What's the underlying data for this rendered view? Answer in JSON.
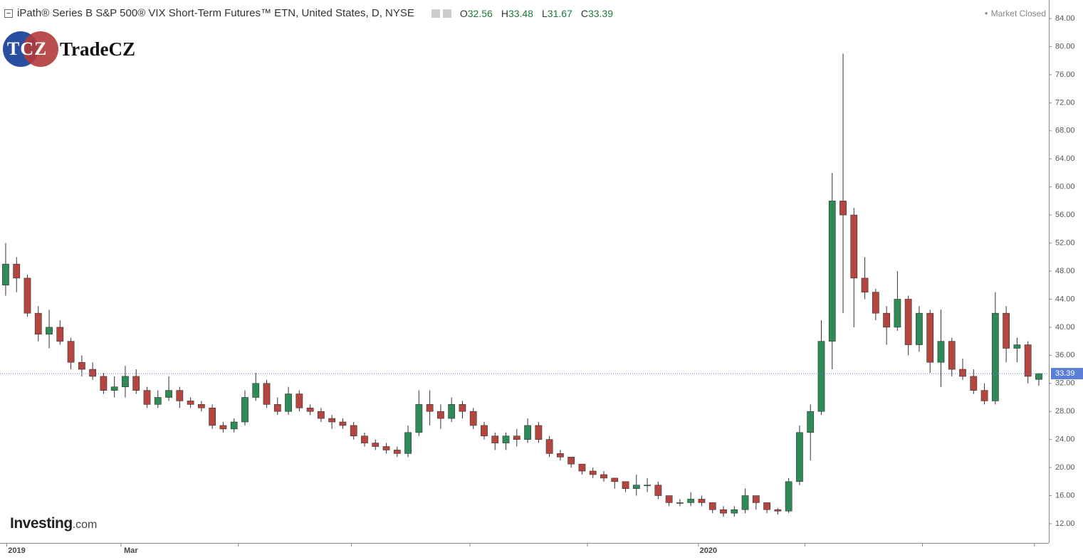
{
  "header": {
    "title": "iPath® Series B S&P 500® VIX Short-Term Futures™ ETN, United States, D, NYSE",
    "ohlc_labels": [
      "O",
      "H",
      "L",
      "C"
    ],
    "status": "Market Closed"
  },
  "logo": {
    "mark": "TCZ",
    "name": "TradeCZ"
  },
  "watermark": {
    "brand": "Investing",
    "suffix": ".com"
  },
  "chart_data": {
    "type": "candlestick",
    "open": [
      46,
      49,
      47,
      42,
      39,
      40,
      38,
      35,
      34,
      33,
      31,
      31.5,
      33,
      31,
      29,
      30,
      31,
      29.5,
      29,
      28.5,
      26,
      25.5,
      26.5,
      30,
      32,
      29,
      28,
      30.5,
      28.5,
      28,
      27,
      26.5,
      26,
      24.5,
      23.5,
      23,
      22.5,
      22,
      25,
      29,
      28,
      27,
      29,
      28,
      26,
      24.5,
      23.5,
      24.5,
      24,
      26,
      24,
      22,
      21.5,
      20.5,
      19.5,
      19,
      18.5,
      18,
      17,
      17.5,
      17.5,
      16,
      15,
      15,
      15.5,
      15,
      14,
      13.5,
      14,
      16,
      15,
      14,
      13.8,
      18,
      25,
      28,
      38,
      58,
      56,
      47,
      45,
      42,
      40,
      44,
      37.5,
      42,
      35,
      38,
      34,
      33,
      31,
      29.5,
      42,
      37,
      37.5,
      32.56
    ],
    "high": [
      52,
      50,
      47.5,
      43,
      42.5,
      41,
      38.5,
      36,
      35,
      33.5,
      33,
      34.5,
      34,
      31.5,
      31,
      33,
      31.5,
      30,
      29.5,
      29,
      26.5,
      27,
      31,
      33.5,
      32.5,
      30,
      31.5,
      31,
      29,
      28.5,
      27.5,
      27,
      26.5,
      25,
      24,
      23.5,
      23,
      26,
      31,
      31,
      29,
      30,
      29.5,
      28.5,
      26.5,
      25,
      25,
      25.5,
      27,
      26.5,
      24.5,
      22.5,
      21.5,
      20.5,
      20,
      19.5,
      18.5,
      18,
      19,
      18.5,
      18,
      16,
      15.5,
      16.5,
      16,
      15,
      14.5,
      14.5,
      17,
      16,
      15,
      14.2,
      18.5,
      26,
      29,
      41,
      62,
      79,
      57,
      50,
      45.5,
      43,
      48,
      44.5,
      43,
      42.5,
      42.5,
      38.5,
      35.5,
      34,
      32,
      45,
      43,
      38.5,
      38,
      33.48
    ],
    "low": [
      44.5,
      45,
      41.5,
      38,
      37,
      37.5,
      34,
      33,
      32.5,
      30.5,
      30,
      30,
      30.5,
      28.5,
      28.5,
      29.5,
      28.5,
      28.5,
      28,
      25.5,
      25,
      25,
      26,
      29.5,
      28.5,
      27.5,
      27.5,
      28,
      27.5,
      26.5,
      25.5,
      25.5,
      24,
      23,
      22.5,
      22,
      21.5,
      21.5,
      24.5,
      26,
      25.5,
      26.5,
      27,
      25.5,
      24,
      22.5,
      22.5,
      23,
      23.5,
      23.5,
      21.5,
      21,
      20,
      19,
      18.5,
      18,
      17,
      16.5,
      16,
      16.5,
      15.5,
      14.5,
      14.5,
      14.5,
      14.5,
      13.5,
      13,
      13,
      13.5,
      14,
      13.5,
      13.3,
      13.5,
      17.5,
      21,
      27.5,
      34,
      42,
      40,
      44,
      41,
      37.5,
      39.5,
      36,
      36.5,
      33.5,
      31.5,
      33,
      32.5,
      30.5,
      29,
      29,
      35,
      35,
      32,
      31.67
    ],
    "close": [
      49,
      47,
      42,
      39,
      40,
      38,
      35,
      34,
      33,
      31,
      31.5,
      33,
      31,
      29,
      30,
      31,
      29.5,
      29,
      28.5,
      26,
      25.5,
      26.5,
      30,
      32,
      29,
      28,
      30.5,
      28.5,
      28,
      27,
      26.5,
      26,
      24.5,
      23.5,
      23,
      22.5,
      22,
      25,
      29,
      28,
      27,
      29,
      28,
      26,
      24.5,
      23.5,
      24.5,
      24,
      26,
      24,
      22,
      21.5,
      20.5,
      19.5,
      19,
      18.5,
      18,
      17,
      17.5,
      17.5,
      16,
      15,
      15,
      15.5,
      15,
      14,
      13.5,
      14,
      16,
      15,
      14,
      13.8,
      18,
      25,
      28,
      38,
      58,
      56,
      47,
      45,
      42,
      40,
      44,
      37.5,
      42,
      35,
      38,
      34,
      33,
      31,
      29.5,
      42,
      37,
      37.5,
      33,
      33.39
    ],
    "up_color": "#2e8b57",
    "down_color": "#b5463f",
    "last_price_color": "#5b7fd6",
    "xlim": [
      -0.52,
      95.92
    ],
    "xticks": [
      {
        "value": 0.1,
        "label": "2019"
      },
      {
        "value": 10.6,
        "label": "Mar"
      },
      {
        "value": 21.4,
        "label": null
      },
      {
        "value": 31.8,
        "label": null
      },
      {
        "value": 42.7,
        "label": null
      },
      {
        "value": 53.5,
        "label": null
      },
      {
        "value": 63.7,
        "label": "2020"
      },
      {
        "value": 73.5,
        "label": null
      },
      {
        "value": 84.3,
        "label": null
      },
      {
        "value": 94.6,
        "label": null
      }
    ],
    "ylim": [
      9.26,
      86.64
    ],
    "yticks": [
      {
        "value": 12,
        "label": "12.00"
      },
      {
        "value": 16,
        "label": "16.00"
      },
      {
        "value": 20,
        "label": "20.00"
      },
      {
        "value": 24,
        "label": "24.00"
      },
      {
        "value": 28,
        "label": "28.00"
      },
      {
        "value": 32,
        "label": "32.00"
      },
      {
        "value": 36,
        "label": "36.00"
      },
      {
        "value": 40,
        "label": "40.00"
      },
      {
        "value": 44,
        "label": "44.00"
      },
      {
        "value": 48,
        "label": "48.00"
      },
      {
        "value": 52,
        "label": "52.00"
      },
      {
        "value": 56,
        "label": "56.00"
      },
      {
        "value": 60,
        "label": "60.00"
      },
      {
        "value": 64,
        "label": "64.00"
      },
      {
        "value": 68,
        "label": "68.00"
      },
      {
        "value": 72,
        "label": "72.00"
      },
      {
        "value": 76,
        "label": "76.00"
      },
      {
        "value": 80,
        "label": "80.00"
      },
      {
        "value": 84,
        "label": "84.00"
      }
    ]
  }
}
